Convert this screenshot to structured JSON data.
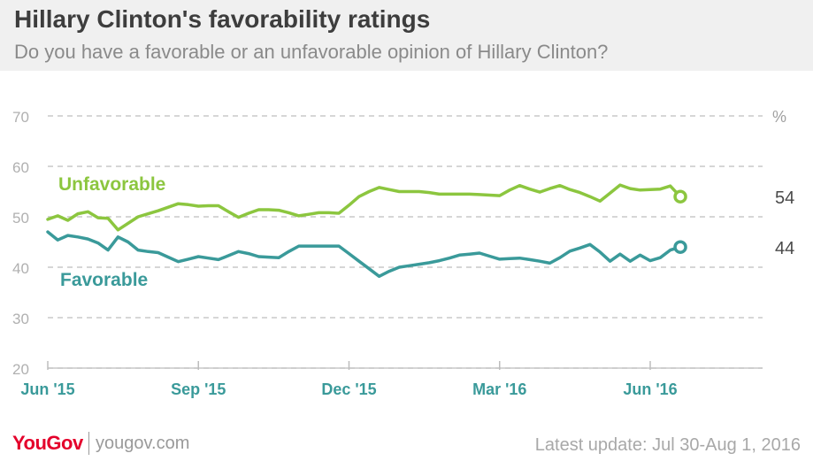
{
  "header": {
    "title": "Hillary Clinton's favorability ratings",
    "subtitle": "Do you have a favorable or an unfavorable opinion of Hillary Clinton?"
  },
  "footer": {
    "logo": "YouGov",
    "site": "yougov.com",
    "update": "Latest update: Jul 30-Aug 1, 2016"
  },
  "chart_data": {
    "type": "line",
    "ylim": [
      20,
      70
    ],
    "yticks": [
      20,
      30,
      40,
      50,
      60,
      70
    ],
    "ylabel": "%",
    "grid": true,
    "xticks": [
      {
        "label": "Jun '15",
        "index": 0
      },
      {
        "label": "Sep '15",
        "index": 15
      },
      {
        "label": "Dec '15",
        "index": 30
      },
      {
        "label": "Mar '16",
        "index": 45
      },
      {
        "label": "Jun '16",
        "index": 60
      }
    ],
    "series": [
      {
        "name": "Unfavorable",
        "color": "#8cc63f",
        "end_label": "54",
        "values": [
          49.5,
          50.2,
          49.3,
          50.6,
          51,
          49.8,
          49.7,
          47.4,
          48.7,
          50,
          50.6,
          51.2,
          51.9,
          52.6,
          52.4,
          52.1,
          52.2,
          52.2,
          51,
          49.9,
          50.7,
          51.4,
          51.4,
          51.3,
          50.8,
          50.2,
          50.5,
          50.8,
          50.8,
          50.7,
          52.3,
          54,
          55,
          55.8,
          55.4,
          55,
          55,
          55,
          54.8,
          54.5,
          54.5,
          54.5,
          54.5,
          54.4,
          54.3,
          54.2,
          55.3,
          56.2,
          55.5,
          54.9,
          55.6,
          56.2,
          55.4,
          54.8,
          54,
          53.1,
          54.7,
          56.3,
          55.6,
          55.3,
          55.4,
          55.5,
          56.1,
          54
        ]
      },
      {
        "name": "Favorable",
        "color": "#3a9a9a",
        "end_label": "44",
        "values": [
          47,
          45.4,
          46.3,
          46,
          45.6,
          44.8,
          43.4,
          46,
          45,
          43.4,
          43.1,
          42.9,
          42,
          41.1,
          41.6,
          42.1,
          41.8,
          41.5,
          42.3,
          43.1,
          42.7,
          42.1,
          42,
          41.9,
          43.1,
          44.2,
          44.2,
          44.2,
          44.2,
          44.2,
          42.7,
          41.2,
          39.7,
          38.2,
          39.2,
          40,
          40.3,
          40.6,
          40.9,
          41.3,
          41.8,
          42.4,
          42.6,
          42.8,
          42.2,
          41.6,
          41.7,
          41.8,
          41.5,
          41.2,
          40.8,
          41.9,
          43.2,
          43.8,
          44.5,
          43,
          41.2,
          42.6,
          41.2,
          42.4,
          41.3,
          41.9,
          43.4,
          44
        ]
      }
    ],
    "annotations": [
      {
        "series": "Unfavorable",
        "text": "Unfavorable"
      },
      {
        "series": "Favorable",
        "text": "Favorable"
      }
    ]
  }
}
